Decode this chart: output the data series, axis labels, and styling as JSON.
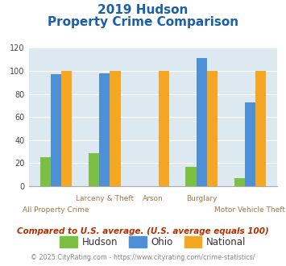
{
  "title_line1": "2019 Hudson",
  "title_line2": "Property Crime Comparison",
  "categories": [
    "All Property Crime",
    "Larceny & Theft",
    "Arson",
    "Burglary",
    "Motor Vehicle Theft"
  ],
  "hudson": [
    25,
    29,
    0,
    17,
    7
  ],
  "ohio": [
    97,
    98,
    0,
    111,
    73
  ],
  "national": [
    100,
    100,
    100,
    100,
    100
  ],
  "hudson_color": "#7bc043",
  "ohio_color": "#4d90d6",
  "national_color": "#f5a623",
  "bg_color": "#dce9f0",
  "ylim": [
    0,
    120
  ],
  "yticks": [
    0,
    20,
    40,
    60,
    80,
    100,
    120
  ],
  "note": "Compared to U.S. average. (U.S. average equals 100)",
  "footer": "© 2025 CityRating.com - https://www.cityrating.com/crime-statistics/",
  "title_color": "#1a5fa8",
  "xlabel_color": "#a07848",
  "note_color": "#b03000",
  "footer_color": "#888888",
  "footer_link_color": "#1a7ab8",
  "legend_labels": [
    "Hudson",
    "Ohio",
    "National"
  ],
  "bar_width": 0.22
}
